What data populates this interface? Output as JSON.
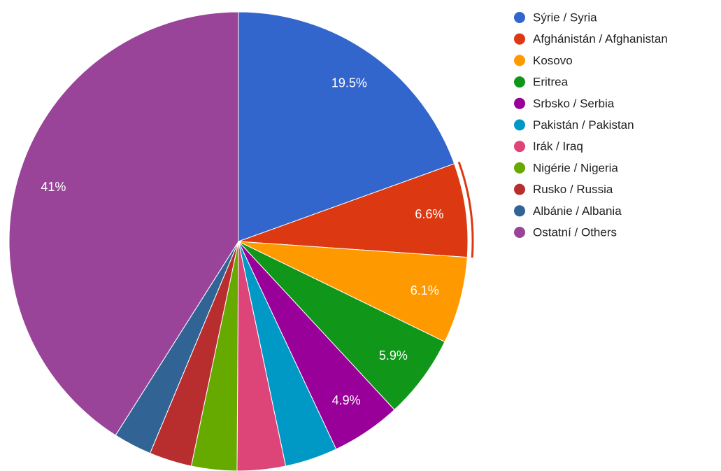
{
  "chart_data": {
    "type": "pie",
    "categories": [
      "Sýrie / Syria",
      "Afghánistán / Afghanistan",
      "Kosovo",
      "Eritrea",
      "Srbsko / Serbia",
      "Pakistán / Pakistan",
      "Irák / Iraq",
      "Nigérie / Nigeria",
      "Rusko / Russia",
      "Albánie / Albania",
      "Ostatní / Others"
    ],
    "values": [
      19.5,
      6.6,
      6.1,
      5.9,
      4.9,
      3.7,
      3.4,
      3.2,
      3.0,
      2.7,
      41
    ],
    "value_labels": [
      "19.5%",
      "6.6%",
      "6.1%",
      "5.9%",
      "4.9%",
      null,
      null,
      null,
      null,
      null,
      "41%"
    ],
    "colors": [
      "#3366cc",
      "#dc3912",
      "#ff9900",
      "#109618",
      "#990099",
      "#0099c6",
      "#dd4477",
      "#66aa00",
      "#b82e2e",
      "#316395",
      "#994499"
    ],
    "legend": "right",
    "highlight_index": 1
  }
}
